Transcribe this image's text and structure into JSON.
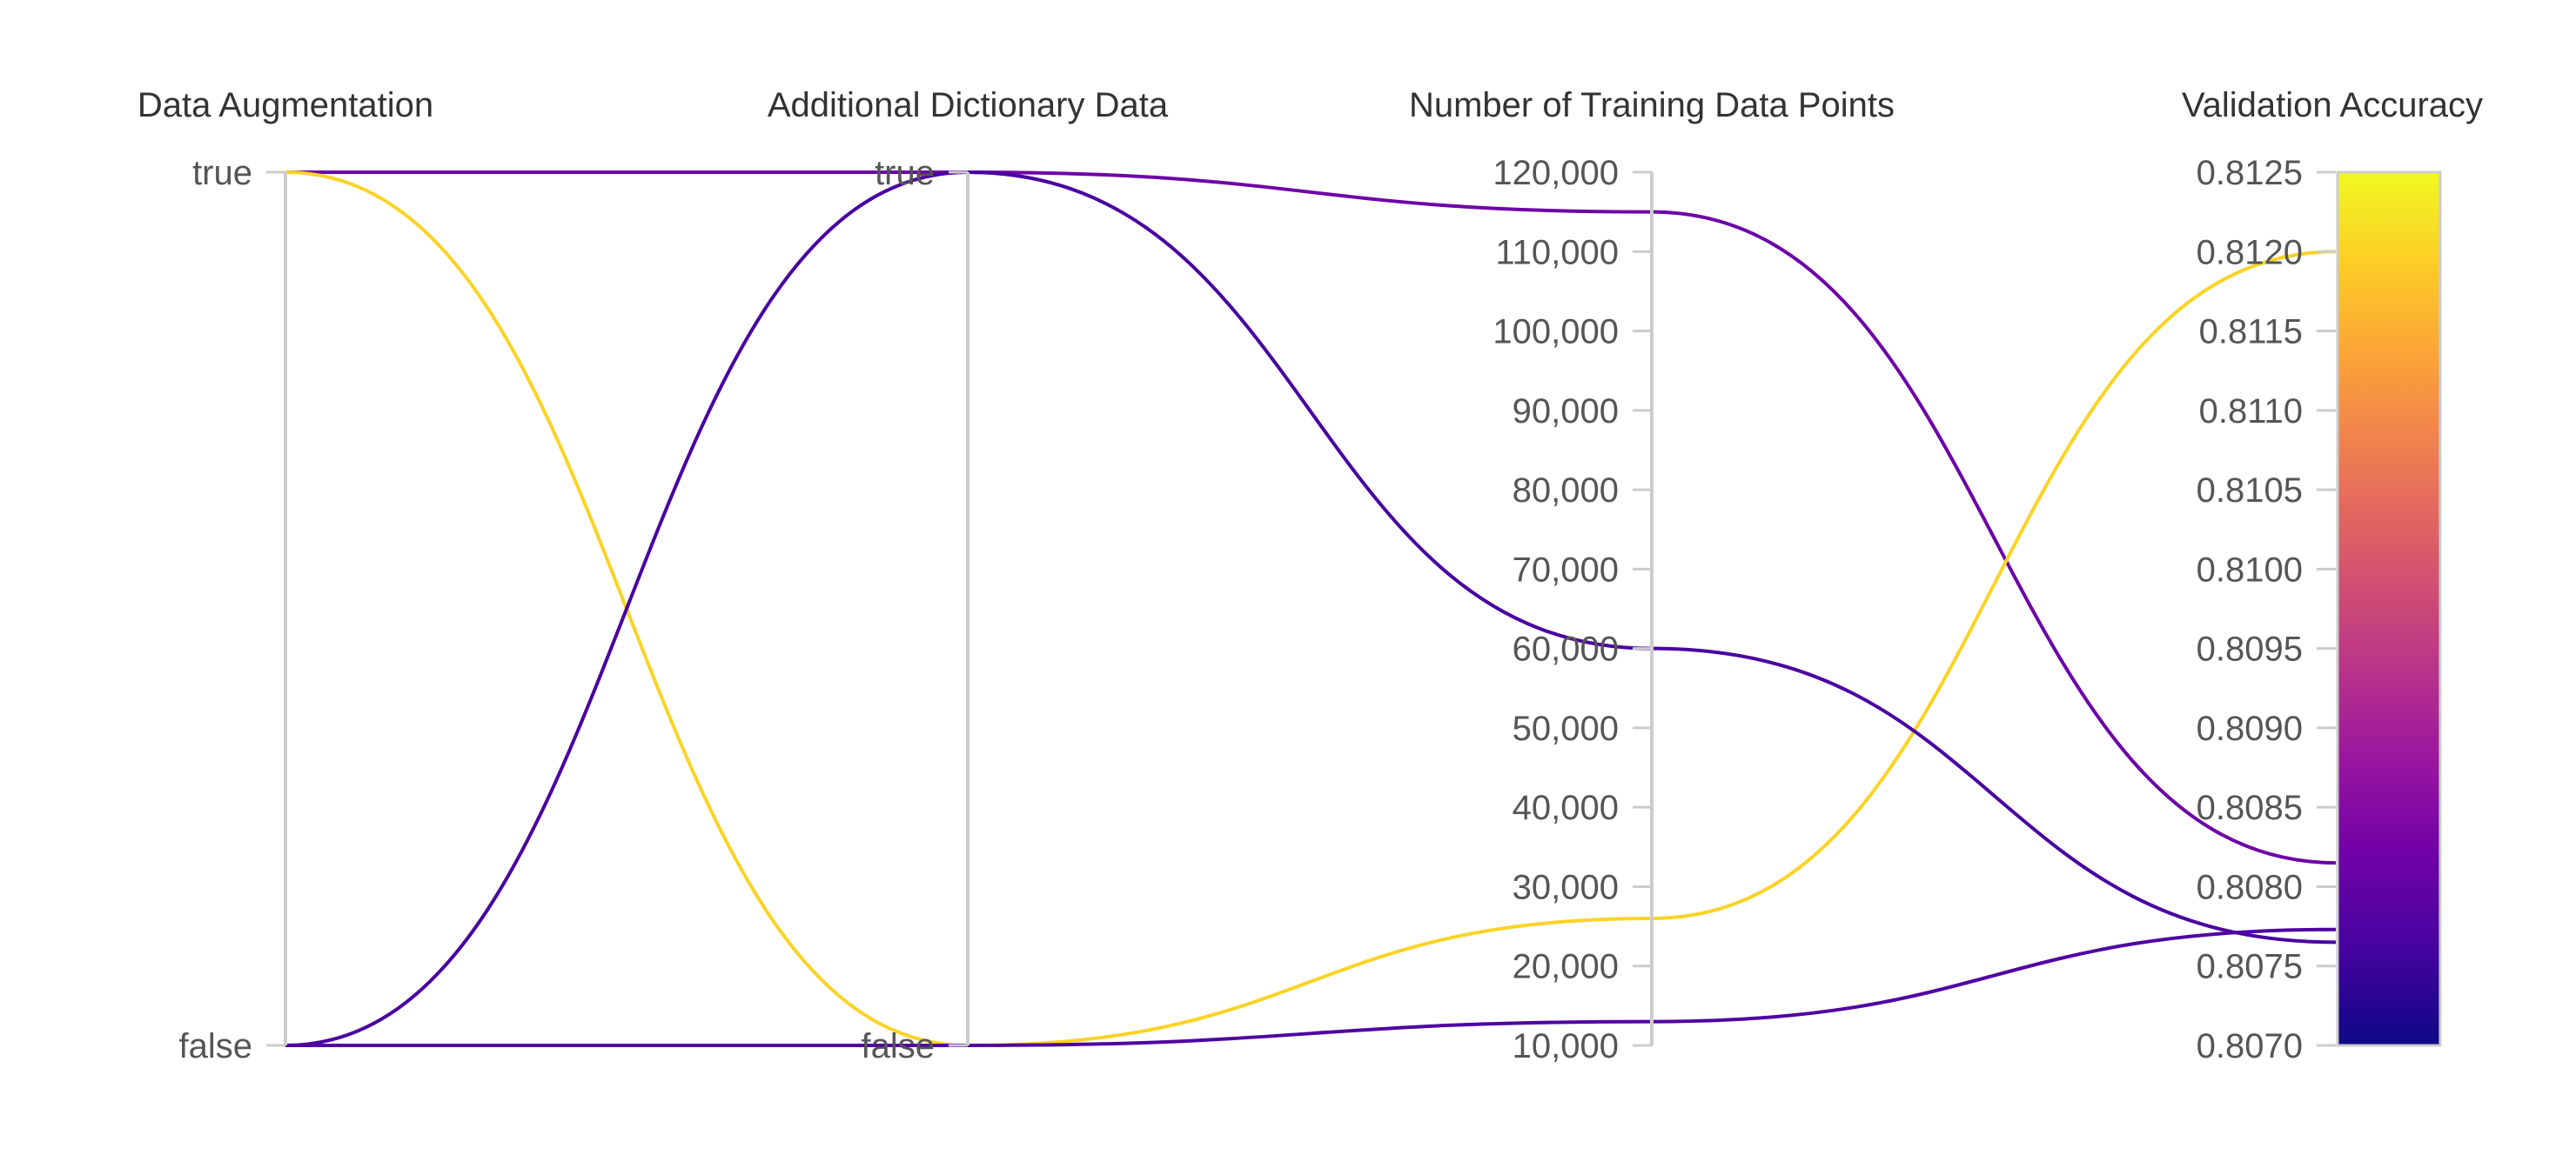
{
  "chart_data": {
    "type": "parallel_coordinates",
    "axes": [
      {
        "id": "aug",
        "title": "Data Augmentation",
        "kind": "categorical",
        "categories": [
          "false",
          "true"
        ]
      },
      {
        "id": "dict",
        "title": "Additional Dictionary Data",
        "kind": "categorical",
        "categories": [
          "false",
          "true"
        ]
      },
      {
        "id": "points",
        "title": "Number of Training Data Points",
        "kind": "numeric",
        "range": [
          10000,
          120000
        ],
        "ticks": [
          10000,
          20000,
          30000,
          40000,
          50000,
          60000,
          70000,
          80000,
          90000,
          100000,
          110000,
          120000
        ],
        "tick_labels": [
          "10,000",
          "20,000",
          "30,000",
          "40,000",
          "50,000",
          "60,000",
          "70,000",
          "80,000",
          "90,000",
          "100,000",
          "110,000",
          "120,000"
        ]
      },
      {
        "id": "acc",
        "title": "Validation Accuracy",
        "kind": "numeric",
        "range": [
          0.807,
          0.8125
        ],
        "ticks": [
          0.807,
          0.8075,
          0.808,
          0.8085,
          0.809,
          0.8095,
          0.81,
          0.8105,
          0.811,
          0.8115,
          0.812,
          0.8125
        ],
        "tick_labels": [
          "0.8070",
          "0.8075",
          "0.8080",
          "0.8085",
          "0.8090",
          "0.8095",
          "0.8100",
          "0.8105",
          "0.8110",
          "0.8115",
          "0.8120",
          "0.8125"
        ],
        "colorbar": true
      }
    ],
    "colorscale": [
      "#0d0887",
      "#46039f",
      "#7201a8",
      "#9c179e",
      "#bd3786",
      "#d8576b",
      "#ed7953",
      "#fb9f3a",
      "#fdca26",
      "#f0f921"
    ],
    "records": [
      {
        "aug": "true",
        "dict": "true",
        "points": 115000,
        "acc": 0.80815
      },
      {
        "aug": "true",
        "dict": "false",
        "points": 26000,
        "acc": 0.812
      },
      {
        "aug": "false",
        "dict": "true",
        "points": 60000,
        "acc": 0.80765
      },
      {
        "aug": "false",
        "dict": "false",
        "points": 13000,
        "acc": 0.80773
      }
    ],
    "grid": false,
    "legend": "colorbar-on-last-axis"
  }
}
